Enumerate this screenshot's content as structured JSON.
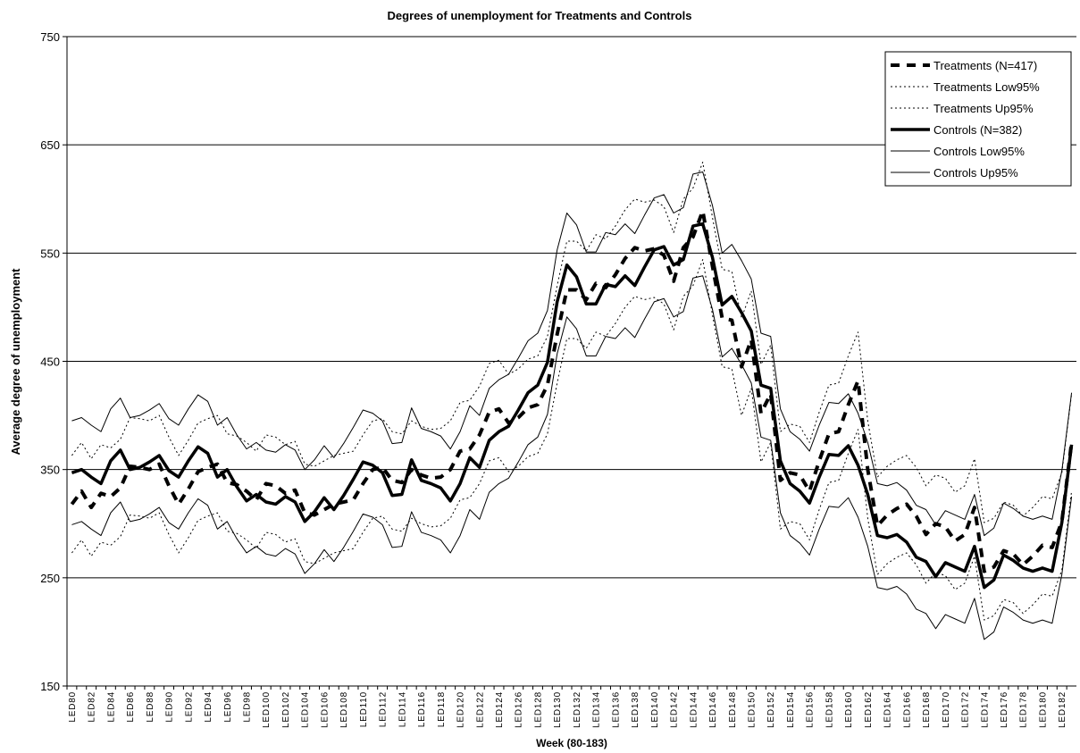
{
  "chart_data": {
    "type": "line",
    "title": "Degrees of unemployment for Treatments and Controls",
    "x_label": "Week (80-183)",
    "y_label": "Average degree of unemployment",
    "categories": [
      "LED80",
      null,
      "LED82",
      null,
      "LED84",
      null,
      "LED86",
      null,
      "LED88",
      null,
      "LED90",
      null,
      "LED92",
      null,
      "LED94",
      null,
      "LED96",
      null,
      "LED98",
      null,
      "LED100",
      null,
      "LED102",
      null,
      "LED104",
      null,
      "LED106",
      null,
      "LED108",
      null,
      "LED110",
      null,
      "LED112",
      null,
      "LED114",
      null,
      "LED116",
      null,
      "LED118",
      null,
      "LED120",
      null,
      "LED122",
      null,
      "LED124",
      null,
      "LED126",
      null,
      "LED128",
      null,
      "LED130",
      null,
      "LED132",
      null,
      "LED134",
      null,
      "LED136",
      null,
      "LED138",
      null,
      "LED140",
      null,
      "LED142",
      null,
      "LED144",
      null,
      "LED146",
      null,
      "LED148",
      null,
      "LED150",
      null,
      "LED152",
      null,
      "LED154",
      null,
      "LED156",
      null,
      "LED158",
      null,
      "LED160",
      null,
      "LED162",
      null,
      "LED164",
      null,
      "LED166",
      null,
      "LED168",
      null,
      "LED170",
      null,
      "LED172",
      null,
      "LED174",
      null,
      "LED176",
      null,
      "LED178",
      null,
      "LED180",
      null,
      "LED182",
      null
    ],
    "ylim": [
      150,
      750
    ],
    "yticks": [
      150,
      250,
      350,
      450,
      550,
      650,
      750
    ],
    "grid": true,
    "legend": "top-right",
    "series": [
      {
        "name": "Treatments (N=417)",
        "color": "#000000",
        "width": 4,
        "dash": "10,8",
        "values": [
          318,
          330,
          315,
          328,
          325,
          333,
          353,
          352,
          350,
          355,
          335,
          318,
          332,
          348,
          352,
          355,
          338,
          336,
          330,
          322,
          337,
          335,
          328,
          331,
          310,
          308,
          313,
          318,
          320,
          322,
          337,
          350,
          352,
          340,
          338,
          350,
          345,
          342,
          343,
          350,
          367,
          369,
          382,
          403,
          406,
          393,
          398,
          407,
          410,
          428,
          475,
          516,
          516,
          507,
          522,
          518,
          530,
          545,
          555,
          552,
          554,
          548,
          524,
          555,
          565,
          589,
          538,
          490,
          488,
          445,
          470,
          402,
          420,
          340,
          347,
          345,
          330,
          358,
          383,
          385,
          410,
          432,
          350,
          298,
          308,
          314,
          318,
          307,
          290,
          300,
          297,
          284,
          290,
          315,
          256,
          260,
          275,
          272,
          262,
          270,
          280,
          278,
          302,
          375
        ]
      },
      {
        "name": "Treatments Low95%",
        "color": "#000000",
        "width": 1,
        "dash": "2,3",
        "values": [
          273,
          285,
          270,
          283,
          280,
          288,
          308,
          307,
          305,
          310,
          290,
          273,
          287,
          303,
          307,
          310,
          293,
          291,
          285,
          277,
          292,
          290,
          283,
          286,
          265,
          263,
          268,
          273,
          275,
          277,
          292,
          305,
          307,
          295,
          293,
          305,
          300,
          297,
          298,
          305,
          322,
          324,
          337,
          358,
          361,
          348,
          353,
          362,
          365,
          383,
          430,
          471,
          471,
          462,
          477,
          473,
          485,
          500,
          510,
          507,
          509,
          503,
          479,
          510,
          520,
          544,
          493,
          445,
          443,
          400,
          425,
          357,
          375,
          295,
          302,
          300,
          285,
          313,
          338,
          340,
          365,
          387,
          305,
          253,
          263,
          269,
          273,
          262,
          245,
          255,
          252,
          239,
          245,
          270,
          211,
          215,
          230,
          227,
          217,
          225,
          235,
          233,
          257,
          330
        ]
      },
      {
        "name": "Treatments Up95%",
        "color": "#000000",
        "width": 1,
        "dash": "2,3",
        "values": [
          363,
          375,
          360,
          373,
          370,
          378,
          398,
          397,
          395,
          400,
          380,
          363,
          377,
          393,
          397,
          400,
          383,
          381,
          375,
          367,
          382,
          380,
          373,
          376,
          355,
          353,
          358,
          363,
          365,
          367,
          382,
          395,
          397,
          385,
          383,
          395,
          390,
          387,
          388,
          395,
          412,
          414,
          427,
          448,
          451,
          438,
          443,
          452,
          455,
          473,
          520,
          561,
          561,
          552,
          567,
          563,
          575,
          590,
          600,
          597,
          599,
          593,
          569,
          600,
          610,
          634,
          583,
          535,
          533,
          490,
          515,
          447,
          465,
          385,
          392,
          390,
          375,
          403,
          428,
          430,
          455,
          477,
          395,
          343,
          353,
          359,
          363,
          352,
          335,
          345,
          342,
          329,
          335,
          360,
          301,
          305,
          320,
          317,
          307,
          315,
          325,
          323,
          347,
          420
        ]
      },
      {
        "name": "Controls (N=382)",
        "color": "#000000",
        "width": 3.5,
        "dash": "none",
        "values": [
          347,
          350,
          343,
          337,
          358,
          368,
          350,
          352,
          357,
          363,
          349,
          343,
          358,
          371,
          365,
          343,
          350,
          334,
          321,
          327,
          320,
          318,
          325,
          320,
          302,
          311,
          324,
          313,
          326,
          341,
          357,
          354,
          347,
          326,
          327,
          359,
          340,
          337,
          333,
          321,
          337,
          361,
          352,
          377,
          385,
          390,
          405,
          421,
          428,
          449,
          505,
          539,
          528,
          503,
          503,
          521,
          519,
          529,
          520,
          537,
          553,
          556,
          539,
          544,
          575,
          577,
          546,
          502,
          510,
          495,
          478,
          428,
          425,
          358,
          337,
          330,
          319,
          343,
          364,
          363,
          372,
          354,
          327,
          289,
          287,
          290,
          283,
          269,
          265,
          251,
          264,
          260,
          256,
          279,
          241,
          248,
          271,
          266,
          259,
          256,
          259,
          256,
          301,
          373
        ]
      },
      {
        "name": "Controls Low95%",
        "color": "#000000",
        "width": 1,
        "dash": "none",
        "values": [
          299,
          302,
          295,
          289,
          310,
          320,
          302,
          304,
          309,
          315,
          301,
          295,
          310,
          323,
          317,
          295,
          302,
          286,
          273,
          279,
          272,
          270,
          277,
          272,
          254,
          263,
          276,
          265,
          278,
          293,
          309,
          306,
          299,
          278,
          279,
          311,
          292,
          289,
          285,
          273,
          289,
          313,
          304,
          329,
          337,
          342,
          357,
          373,
          380,
          401,
          457,
          491,
          480,
          455,
          455,
          473,
          471,
          481,
          472,
          489,
          505,
          508,
          491,
          496,
          527,
          529,
          498,
          454,
          462,
          447,
          430,
          380,
          377,
          310,
          289,
          282,
          271,
          295,
          316,
          315,
          324,
          306,
          279,
          241,
          239,
          242,
          235,
          221,
          217,
          203,
          216,
          212,
          208,
          231,
          193,
          200,
          223,
          218,
          211,
          208,
          211,
          208,
          253,
          325
        ]
      },
      {
        "name": "Controls Up95%",
        "color": "#000000",
        "width": 1,
        "dash": "none",
        "values": [
          395,
          398,
          391,
          385,
          406,
          416,
          398,
          400,
          405,
          411,
          397,
          391,
          406,
          419,
          413,
          391,
          398,
          382,
          369,
          375,
          368,
          366,
          373,
          368,
          350,
          359,
          372,
          361,
          374,
          389,
          405,
          402,
          395,
          374,
          375,
          407,
          388,
          385,
          381,
          369,
          385,
          409,
          400,
          425,
          433,
          438,
          453,
          469,
          476,
          497,
          553,
          587,
          576,
          551,
          551,
          569,
          567,
          577,
          568,
          585,
          601,
          604,
          587,
          592,
          623,
          625,
          594,
          550,
          558,
          543,
          526,
          476,
          473,
          406,
          385,
          378,
          367,
          391,
          412,
          411,
          420,
          402,
          375,
          337,
          335,
          338,
          331,
          317,
          313,
          299,
          312,
          308,
          304,
          327,
          289,
          296,
          319,
          314,
          307,
          304,
          307,
          304,
          349,
          421
        ]
      }
    ]
  }
}
